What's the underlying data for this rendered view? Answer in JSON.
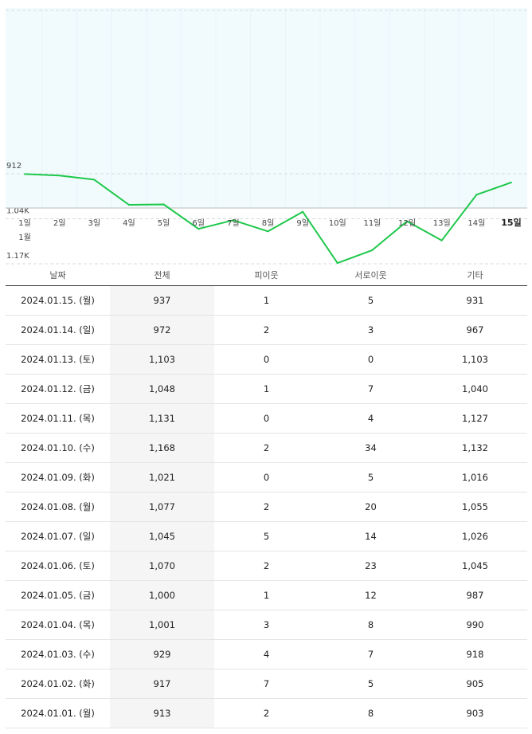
{
  "chart_data": {
    "type": "line",
    "x": [
      "1일",
      "2일",
      "3일",
      "4일",
      "5일",
      "6일",
      "7일",
      "8일",
      "9일",
      "10일",
      "11일",
      "12일",
      "13일",
      "14일",
      "15일"
    ],
    "values": [
      913,
      917,
      929,
      1001,
      1000,
      1070,
      1045,
      1077,
      1021,
      1168,
      1131,
      1048,
      1103,
      972,
      937
    ],
    "month_label": "1월",
    "active_label": "15일",
    "yticks": [
      {
        "value": 912,
        "label": "912"
      },
      {
        "value": 1041,
        "label": "1.04K"
      },
      {
        "value": 1170,
        "label": "1.17K"
      }
    ],
    "line_color": "#1ec84b",
    "plot_bg": "#f1fbfd",
    "grid": true
  },
  "table": {
    "headers": [
      "날짜",
      "전체",
      "피이웃",
      "서로이웃",
      "기타"
    ],
    "rows": [
      [
        "2024.01.15. (월)",
        "937",
        "1",
        "5",
        "931"
      ],
      [
        "2024.01.14. (일)",
        "972",
        "2",
        "3",
        "967"
      ],
      [
        "2024.01.13. (토)",
        "1,103",
        "0",
        "0",
        "1,103"
      ],
      [
        "2024.01.12. (금)",
        "1,048",
        "1",
        "7",
        "1,040"
      ],
      [
        "2024.01.11. (목)",
        "1,131",
        "0",
        "4",
        "1,127"
      ],
      [
        "2024.01.10. (수)",
        "1,168",
        "2",
        "34",
        "1,132"
      ],
      [
        "2024.01.09. (화)",
        "1,021",
        "0",
        "5",
        "1,016"
      ],
      [
        "2024.01.08. (월)",
        "1,077",
        "2",
        "20",
        "1,055"
      ],
      [
        "2024.01.07. (일)",
        "1,045",
        "5",
        "14",
        "1,026"
      ],
      [
        "2024.01.06. (토)",
        "1,070",
        "2",
        "23",
        "1,045"
      ],
      [
        "2024.01.05. (금)",
        "1,000",
        "1",
        "12",
        "987"
      ],
      [
        "2024.01.04. (목)",
        "1,001",
        "3",
        "8",
        "990"
      ],
      [
        "2024.01.03. (수)",
        "929",
        "4",
        "7",
        "918"
      ],
      [
        "2024.01.02. (화)",
        "917",
        "7",
        "5",
        "905"
      ],
      [
        "2024.01.01. (월)",
        "913",
        "2",
        "8",
        "903"
      ]
    ]
  }
}
